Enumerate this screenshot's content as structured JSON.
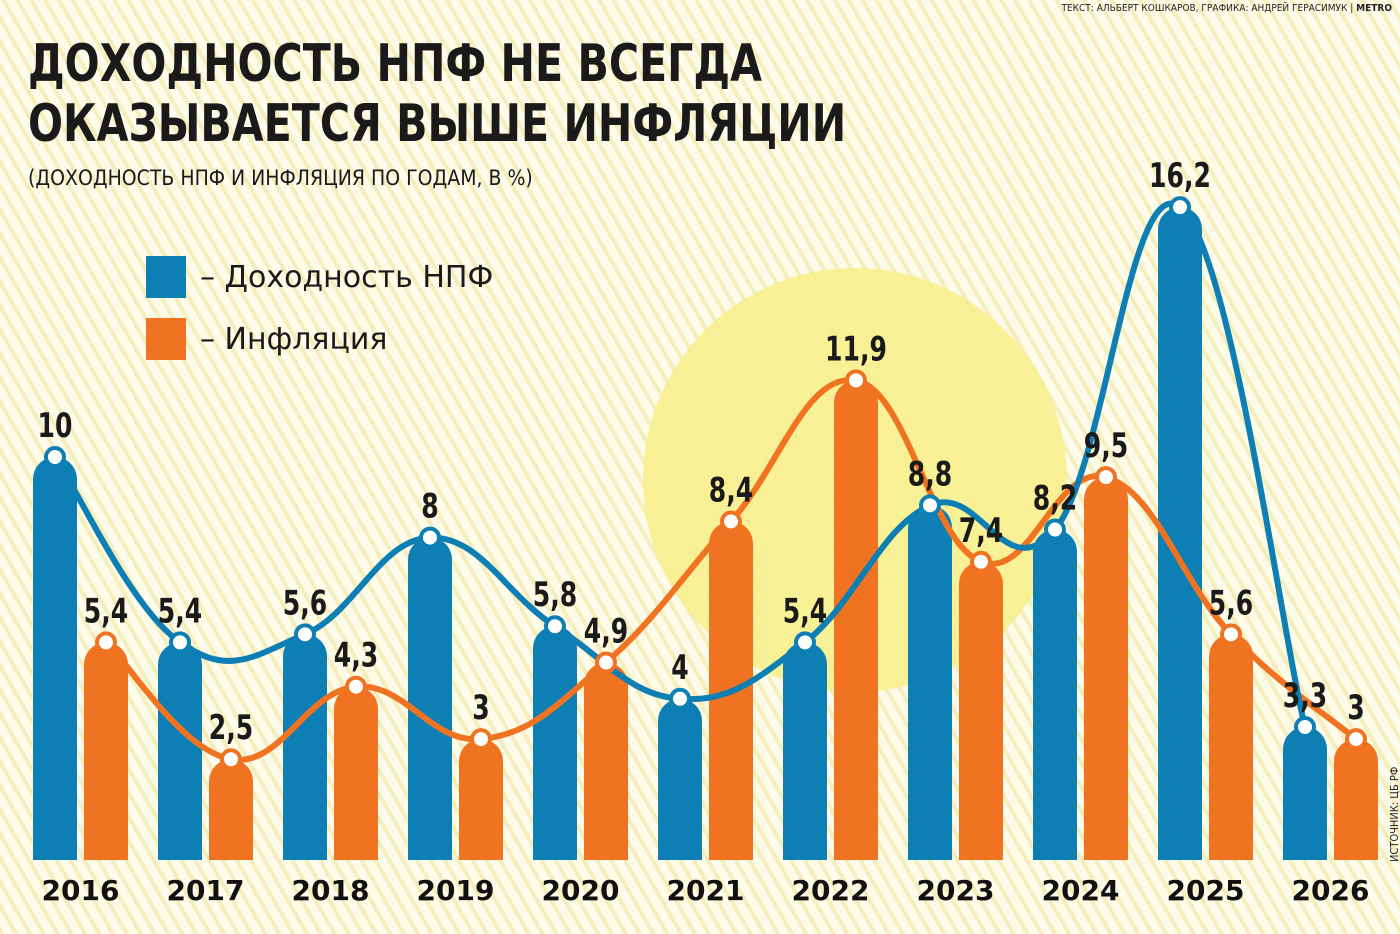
{
  "credit": {
    "text": "ТЕКСТ: АЛЬБЕРТ КОШКАРОВ, ГРАФИКА: АНДРЕЙ ГЕРАСИМУК |",
    "brand": "METRO"
  },
  "title_line1": "ДОХОДНОСТЬ НПФ НЕ ВСЕГДА",
  "title_line2": "ОКАЗЫВАЕТСЯ ВЫШЕ ИНФЛЯЦИИ",
  "subtitle": "(ДОХОДНОСТЬ НПФ И ИНФЛЯЦИЯ ПО ГОДАМ, В %)",
  "source": "ИСТОЧНИК: ЦБ РФ",
  "colors": {
    "npf": "#0d7fb5",
    "inflation": "#f07322",
    "highlight": "#f7ef8a"
  },
  "chart_data": {
    "type": "bar",
    "title": "ДОХОДНОСТЬ НПФ НЕ ВСЕГДА ОКАЗЫВАЕТСЯ ВЫШЕ ИНФЛЯЦИИ",
    "subtitle": "(ДОХОДНОСТЬ НПФ И ИНФЛЯЦИЯ ПО ГОДАМ, В %)",
    "categories": [
      "2016",
      "2017",
      "2018",
      "2019",
      "2020",
      "2021",
      "2022",
      "2023",
      "2024",
      "2025",
      "2026"
    ],
    "series": [
      {
        "name": "– Доходность НПФ",
        "color": "#0d7fb5",
        "values": [
          10,
          5.4,
          5.6,
          8,
          5.8,
          4,
          5.4,
          8.8,
          8.2,
          16.2,
          3.3
        ],
        "labels": [
          "10",
          "5,4",
          "5,6",
          "8",
          "5,8",
          "4",
          "5,4",
          "8,8",
          "8,2",
          "16,2",
          "3,3"
        ]
      },
      {
        "name": "– Инфляция",
        "color": "#f07322",
        "values": [
          5.4,
          2.5,
          4.3,
          3,
          4.9,
          8.4,
          11.9,
          7.4,
          9.5,
          5.6,
          3
        ],
        "labels": [
          "5,4",
          "2,5",
          "4,3",
          "3",
          "4,9",
          "8,4",
          "11,9",
          "7,4",
          "9,5",
          "5,6",
          "3"
        ]
      }
    ],
    "overlay": "smooth line through the top of each series' bars",
    "ylim": [
      0,
      16.2
    ],
    "grid": false,
    "legend": "top-left"
  }
}
